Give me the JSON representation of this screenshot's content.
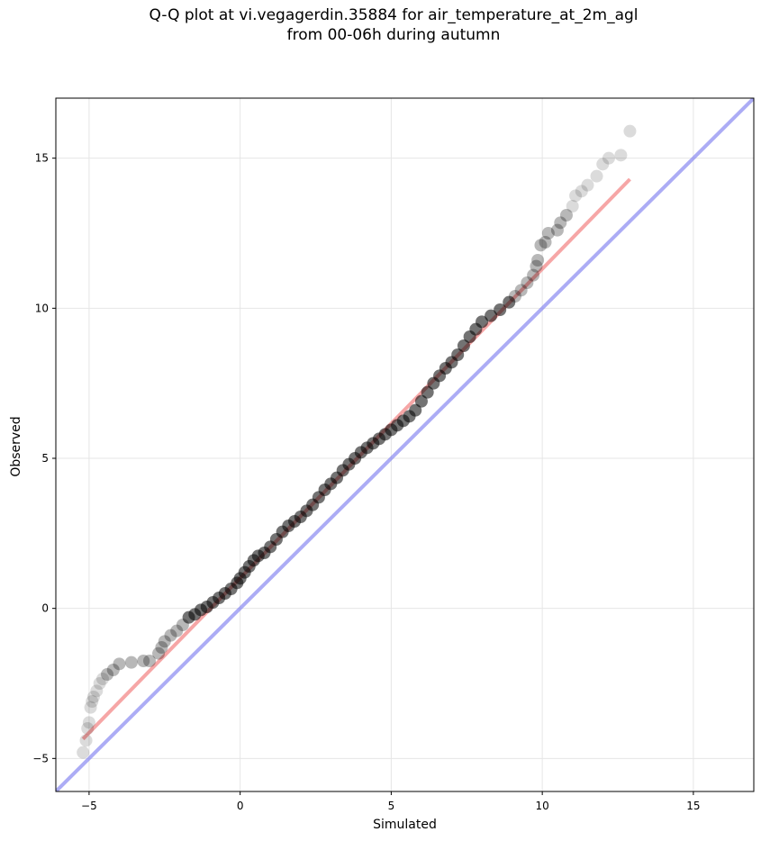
{
  "chart_data": {
    "type": "scatter",
    "title_line1": "Q-Q plot at vi.vegagerdin.35884 for air_temperature_at_2m_agl",
    "title_line2": "from 00-06h during autumn",
    "xlabel": "Simulated",
    "ylabel": "Observed",
    "xlim": [
      -6.1,
      17.0
    ],
    "ylim": [
      -6.1,
      17.0
    ],
    "xticks": [
      -5,
      0,
      5,
      10,
      15
    ],
    "yticks": [
      -5,
      0,
      5,
      10,
      15
    ],
    "grid": true,
    "points": [
      [
        -5.2,
        -4.8
      ],
      [
        -5.1,
        -4.4
      ],
      [
        -5.05,
        -4.0
      ],
      [
        -5.0,
        -3.8
      ],
      [
        -4.95,
        -3.3
      ],
      [
        -4.9,
        -3.1
      ],
      [
        -4.85,
        -2.95
      ],
      [
        -4.75,
        -2.75
      ],
      [
        -4.65,
        -2.5
      ],
      [
        -4.55,
        -2.35
      ],
      [
        -4.4,
        -2.2
      ],
      [
        -4.2,
        -2.05
      ],
      [
        -4.0,
        -1.85
      ],
      [
        -3.6,
        -1.8
      ],
      [
        -3.2,
        -1.75
      ],
      [
        -3.0,
        -1.75
      ],
      [
        -2.7,
        -1.5
      ],
      [
        -2.6,
        -1.3
      ],
      [
        -2.5,
        -1.1
      ],
      [
        -2.3,
        -0.9
      ],
      [
        -2.1,
        -0.75
      ],
      [
        -1.9,
        -0.55
      ],
      [
        -1.7,
        -0.3
      ],
      [
        -1.5,
        -0.2
      ],
      [
        -1.3,
        -0.05
      ],
      [
        -1.1,
        0.05
      ],
      [
        -0.9,
        0.2
      ],
      [
        -0.7,
        0.35
      ],
      [
        -0.5,
        0.5
      ],
      [
        -0.3,
        0.65
      ],
      [
        -0.1,
        0.85
      ],
      [
        0.0,
        1.0
      ],
      [
        0.15,
        1.2
      ],
      [
        0.3,
        1.4
      ],
      [
        0.45,
        1.6
      ],
      [
        0.6,
        1.75
      ],
      [
        0.8,
        1.85
      ],
      [
        1.0,
        2.05
      ],
      [
        1.2,
        2.3
      ],
      [
        1.4,
        2.55
      ],
      [
        1.6,
        2.75
      ],
      [
        1.8,
        2.9
      ],
      [
        2.0,
        3.05
      ],
      [
        2.2,
        3.25
      ],
      [
        2.4,
        3.45
      ],
      [
        2.6,
        3.7
      ],
      [
        2.8,
        3.95
      ],
      [
        3.0,
        4.15
      ],
      [
        3.2,
        4.35
      ],
      [
        3.4,
        4.6
      ],
      [
        3.6,
        4.8
      ],
      [
        3.8,
        5.0
      ],
      [
        4.0,
        5.2
      ],
      [
        4.2,
        5.35
      ],
      [
        4.4,
        5.5
      ],
      [
        4.6,
        5.65
      ],
      [
        4.8,
        5.8
      ],
      [
        5.0,
        5.95
      ],
      [
        5.2,
        6.1
      ],
      [
        5.4,
        6.25
      ],
      [
        5.6,
        6.4
      ],
      [
        5.8,
        6.6
      ],
      [
        6.0,
        6.9
      ],
      [
        6.2,
        7.2
      ],
      [
        6.4,
        7.5
      ],
      [
        6.6,
        7.75
      ],
      [
        6.8,
        8.0
      ],
      [
        7.0,
        8.2
      ],
      [
        7.2,
        8.45
      ],
      [
        7.4,
        8.75
      ],
      [
        7.6,
        9.05
      ],
      [
        7.8,
        9.3
      ],
      [
        8.0,
        9.55
      ],
      [
        8.3,
        9.75
      ],
      [
        8.6,
        9.95
      ],
      [
        8.9,
        10.2
      ],
      [
        9.1,
        10.4
      ],
      [
        9.3,
        10.6
      ],
      [
        9.5,
        10.85
      ],
      [
        9.7,
        11.1
      ],
      [
        9.8,
        11.4
      ],
      [
        9.85,
        11.6
      ],
      [
        9.95,
        12.1
      ],
      [
        10.1,
        12.2
      ],
      [
        10.2,
        12.5
      ],
      [
        10.5,
        12.6
      ],
      [
        10.6,
        12.85
      ],
      [
        10.8,
        13.1
      ],
      [
        11.0,
        13.4
      ],
      [
        11.1,
        13.75
      ],
      [
        11.3,
        13.9
      ],
      [
        11.5,
        14.1
      ],
      [
        11.8,
        14.4
      ],
      [
        12.0,
        14.8
      ],
      [
        12.2,
        15.0
      ],
      [
        12.6,
        15.1
      ],
      [
        12.9,
        15.9
      ]
    ],
    "fit_line": {
      "x": [
        -5.2,
        12.9
      ],
      "y": [
        -4.35,
        14.3
      ],
      "color": "#f28080"
    },
    "identity_line": {
      "color": "#8080f0"
    },
    "point_color": "#000000"
  }
}
